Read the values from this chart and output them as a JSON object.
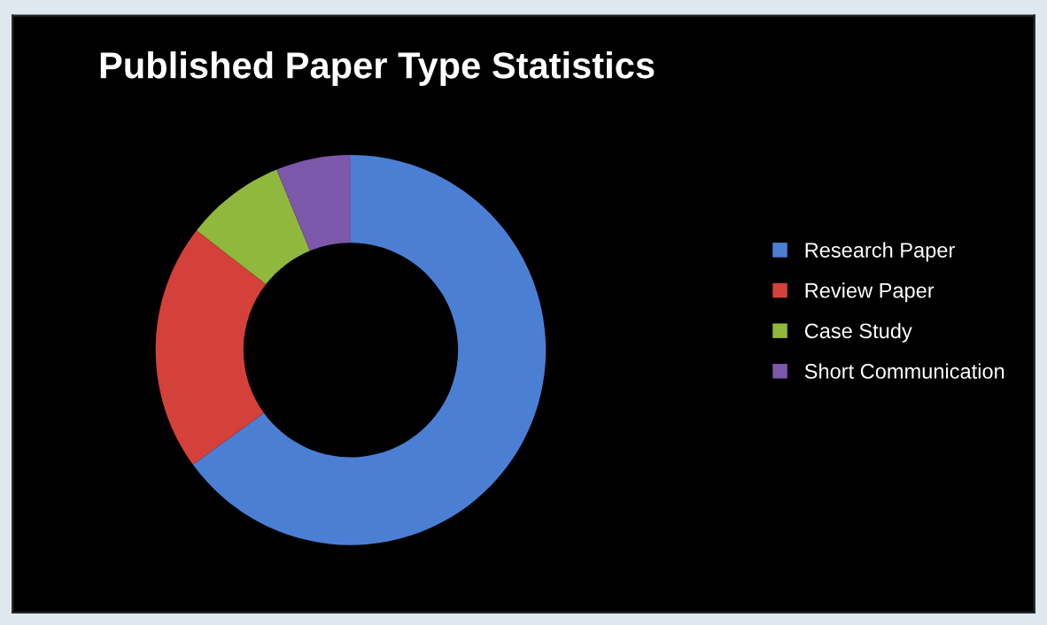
{
  "chart_data": {
    "type": "donut",
    "title": "Published Paper Type Statistics",
    "categories": [
      "Research Paper",
      "Review Paper",
      "Case Study",
      "Short Communication"
    ],
    "values": [
      65,
      20.5,
      8.3,
      6.2
    ],
    "colors": [
      "#4a7fd4",
      "#d4403a",
      "#8fb83c",
      "#7d57aa"
    ],
    "legend": "right"
  }
}
